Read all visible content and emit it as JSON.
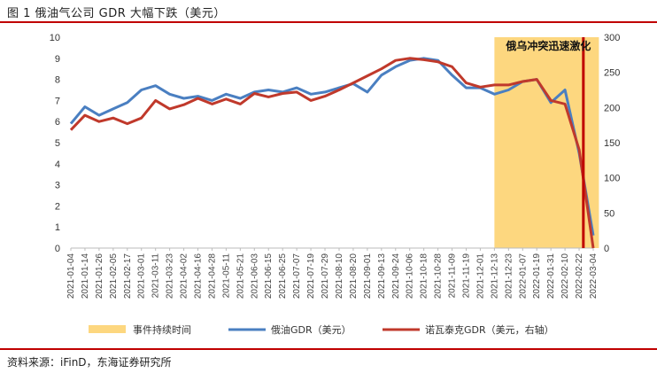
{
  "header": {
    "title": "图 1   俄油气公司 GDR 大幅下跌（美元）"
  },
  "footer": {
    "source": "资料来源：iFinD，东海证券研究所"
  },
  "chart_data": {
    "type": "line",
    "x_labels": [
      "2021-01-04",
      "2021-01-14",
      "2021-01-26",
      "2021-02-05",
      "2021-02-17",
      "2021-03-01",
      "2021-03-11",
      "2021-03-23",
      "2021-04-02",
      "2021-04-16",
      "2021-04-28",
      "2021-05-11",
      "2021-05-21",
      "2021-06-03",
      "2021-06-15",
      "2021-06-25",
      "2021-07-07",
      "2021-07-19",
      "2021-07-29",
      "2021-08-10",
      "2021-08-20",
      "2021-09-01",
      "2021-09-13",
      "2021-09-24",
      "2021-10-06",
      "2021-10-18",
      "2021-10-28",
      "2021-11-09",
      "2021-11-19",
      "2021-12-01",
      "2021-12-13",
      "2021-12-23",
      "2022-01-07",
      "2022-01-19",
      "2022-01-31",
      "2022-02-10",
      "2022-02-22",
      "2022-03-04"
    ],
    "left_axis": {
      "min": 0,
      "max": 10,
      "ticks": [
        0,
        1,
        2,
        3,
        4,
        5,
        6,
        7,
        8,
        9,
        10
      ]
    },
    "right_axis": {
      "min": 0,
      "max": 300,
      "ticks": [
        0,
        50,
        100,
        150,
        200,
        250,
        300
      ]
    },
    "colors": {
      "lukoil": "#4a7fc1",
      "novatek": "#c0392b",
      "event": "#fdd77f",
      "event_line": "#c00000"
    },
    "event_period": {
      "start_index": 30,
      "end_index": 37.4,
      "marker_index": 36.3
    },
    "annotation": "俄乌冲突迅速激化",
    "series": [
      {
        "name": "俄油GDR（美元）",
        "axis": "left",
        "values": [
          5.9,
          6.7,
          6.3,
          6.6,
          6.9,
          7.5,
          7.7,
          7.3,
          7.1,
          7.2,
          7.0,
          7.3,
          7.1,
          7.4,
          7.5,
          7.4,
          7.6,
          7.3,
          7.4,
          7.6,
          7.8,
          7.4,
          8.2,
          8.6,
          8.9,
          9.0,
          8.9,
          8.2,
          7.6,
          7.6,
          7.3,
          7.5,
          7.9,
          8.0,
          6.9,
          7.5,
          4.5,
          0.6
        ]
      },
      {
        "name": "诺瓦泰克GDR（美元，右轴）",
        "axis": "right",
        "values": [
          168,
          189,
          180,
          185,
          177,
          185,
          210,
          198,
          204,
          213,
          205,
          212,
          205,
          220,
          215,
          220,
          222,
          210,
          216,
          225,
          235,
          245,
          255,
          267,
          270,
          268,
          265,
          258,
          235,
          229,
          232,
          232,
          237,
          240,
          210,
          205,
          140,
          0
        ]
      }
    ],
    "legend": [
      {
        "label": "事件持续时间",
        "kind": "box"
      },
      {
        "label": "俄油GDR（美元）",
        "kind": "line"
      },
      {
        "label": "诺瓦泰克GDR（美元，右轴）",
        "kind": "line"
      }
    ]
  }
}
